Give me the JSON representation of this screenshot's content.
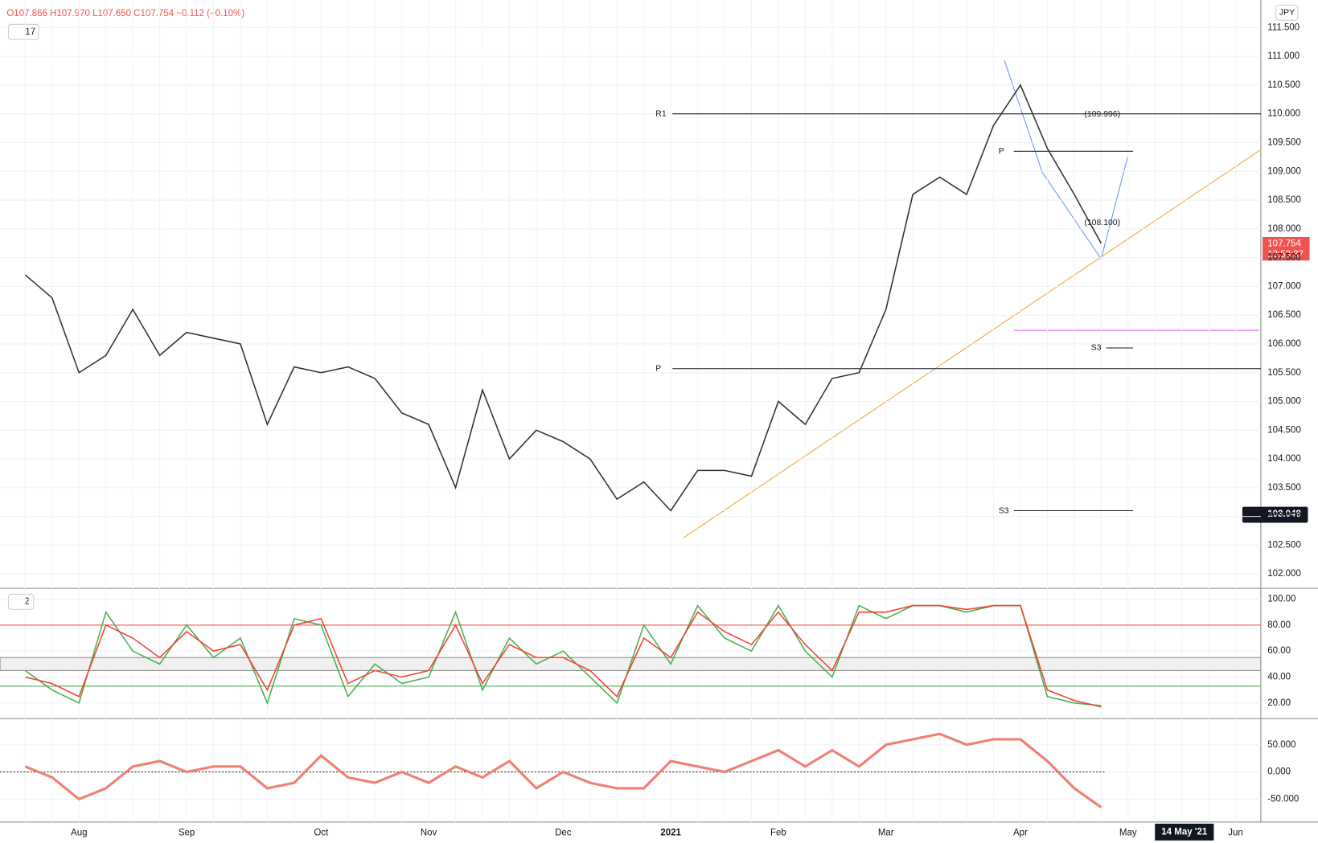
{
  "header": {
    "ohlc": "O107.866 H107.970 L107.650 C107.754 −0.112 (−0.10%)",
    "interval": "17",
    "currency": "JPY",
    "last_price": "107.754",
    "countdown": "13:53:37",
    "cursor_price": "103.048",
    "cursor_date": "14 May '21",
    "pane2": "2",
    "fib_high": "(109.996)",
    "fib_low": "(108.100)"
  },
  "chart_data": [
    {
      "type": "line",
      "name": "price",
      "categories": [
        null,
        null,
        "Aug",
        null,
        null,
        null,
        "Sep",
        null,
        null,
        null,
        null,
        "Oct",
        null,
        null,
        null,
        "Nov",
        null,
        null,
        null,
        null,
        "Dec",
        null,
        null,
        null,
        "2021",
        null,
        null,
        null,
        "Feb",
        null,
        null,
        null,
        "Mar",
        null,
        null,
        null,
        null,
        "Apr",
        null,
        null,
        null,
        "May",
        null,
        null,
        null,
        "Jun"
      ],
      "series": [
        {
          "color": "#333333",
          "values": [
            107.2,
            106.8,
            105.5,
            105.8,
            106.6,
            105.8,
            106.2,
            106.1,
            106.0,
            104.6,
            105.6,
            105.5,
            105.6,
            105.4,
            104.8,
            104.6,
            103.5,
            105.2,
            104.0,
            104.5,
            104.3,
            104.0,
            103.3,
            103.6,
            103.1,
            103.8,
            103.8,
            103.7,
            105.0,
            104.6,
            105.4,
            105.5,
            106.6,
            108.6,
            108.9,
            108.6,
            109.8,
            110.5,
            109.4,
            108.6,
            107.75,
            null,
            null,
            null,
            null,
            null
          ]
        }
      ],
      "ylim": [
        101.75,
        111.98
      ],
      "yticks": [
        {
          "value": 102,
          "label": "102.000"
        },
        {
          "value": 102.5,
          "label": "102.500"
        },
        {
          "value": 103,
          "label": "103.000"
        },
        {
          "value": 103.5,
          "label": "103.500"
        },
        {
          "value": 104,
          "label": "104.000"
        },
        {
          "value": 104.5,
          "label": "104.500"
        },
        {
          "value": 105,
          "label": "105.000"
        },
        {
          "value": 105.5,
          "label": "105.500"
        },
        {
          "value": 106,
          "label": "106.000"
        },
        {
          "value": 106.5,
          "label": "106.500"
        },
        {
          "value": 107,
          "label": "107.000"
        },
        {
          "value": 107.5,
          "label": "107.500"
        },
        {
          "value": 108,
          "label": "108.000"
        },
        {
          "value": 108.5,
          "label": "108.500"
        },
        {
          "value": 109,
          "label": "109.000"
        },
        {
          "value": 109.5,
          "label": "109.500"
        },
        {
          "value": 110,
          "label": "110.000"
        },
        {
          "value": 110.5,
          "label": "110.500"
        },
        {
          "value": 111,
          "label": "111.000"
        },
        {
          "value": 111.5,
          "label": "111.500"
        }
      ],
      "levels": [
        {
          "label": "R1",
          "value": 110.0
        },
        {
          "label": "P",
          "value": 105.57
        },
        {
          "label": "S3",
          "value": 103.1
        },
        {
          "label": "P",
          "value": 109.35
        },
        {
          "label": "S3",
          "value": 105.93
        }
      ],
      "grid": true
    },
    {
      "type": "line",
      "name": "stochastic",
      "series": [
        {
          "color": "#4caf50",
          "values": [
            45,
            30,
            20,
            90,
            60,
            50,
            80,
            55,
            70,
            20,
            85,
            80,
            25,
            50,
            35,
            40,
            90,
            30,
            70,
            50,
            60,
            40,
            20,
            80,
            50,
            95,
            70,
            60,
            95,
            60,
            40,
            95,
            85,
            95,
            95,
            90,
            95,
            95,
            25,
            20,
            18
          ]
        },
        {
          "color": "#f44336",
          "values": [
            40,
            35,
            25,
            80,
            70,
            55,
            75,
            60,
            65,
            30,
            80,
            85,
            35,
            45,
            40,
            45,
            80,
            35,
            65,
            55,
            55,
            45,
            25,
            70,
            55,
            90,
            75,
            65,
            90,
            65,
            45,
            90,
            90,
            95,
            95,
            92,
            95,
            95,
            30,
            22,
            17
          ]
        }
      ],
      "ylim": [
        8,
        107
      ],
      "yticks": [
        {
          "value": 100,
          "label": "100.00"
        },
        {
          "value": 80,
          "label": "80.00"
        },
        {
          "value": 60,
          "label": "60.00"
        },
        {
          "value": 40,
          "label": "40.00"
        },
        {
          "value": 20,
          "label": "20.00"
        }
      ],
      "bands": {
        "upper": 80,
        "lower": 33,
        "zone": [
          45,
          55
        ]
      }
    },
    {
      "type": "line",
      "name": "momentum",
      "series": [
        {
          "color": "#f08070",
          "values": [
            10,
            -10,
            -50,
            -30,
            10,
            20,
            0,
            10,
            10,
            -30,
            -20,
            30,
            -10,
            -20,
            0,
            -20,
            10,
            -10,
            20,
            -30,
            0,
            -20,
            -30,
            -30,
            20,
            10,
            0,
            20,
            40,
            10,
            40,
            10,
            50,
            60,
            70,
            50,
            60,
            60,
            20,
            -30,
            -65
          ]
        }
      ],
      "ylim": [
        -92,
        95
      ],
      "yticks": [
        {
          "value": 50,
          "label": "50.000"
        },
        {
          "value": 0,
          "label": "0.000"
        },
        {
          "value": -50,
          "label": "-50.000"
        }
      ]
    }
  ]
}
